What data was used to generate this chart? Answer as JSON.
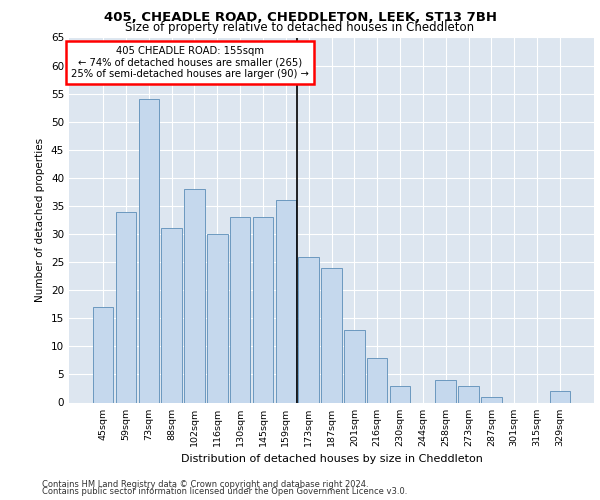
{
  "title1": "405, CHEADLE ROAD, CHEDDLETON, LEEK, ST13 7BH",
  "title2": "Size of property relative to detached houses in Cheddleton",
  "xlabel": "Distribution of detached houses by size in Cheddleton",
  "ylabel": "Number of detached properties",
  "categories": [
    "45sqm",
    "59sqm",
    "73sqm",
    "88sqm",
    "102sqm",
    "116sqm",
    "130sqm",
    "145sqm",
    "159sqm",
    "173sqm",
    "187sqm",
    "201sqm",
    "216sqm",
    "230sqm",
    "244sqm",
    "258sqm",
    "273sqm",
    "287sqm",
    "301sqm",
    "315sqm",
    "329sqm"
  ],
  "values": [
    17,
    34,
    54,
    31,
    38,
    30,
    33,
    33,
    36,
    26,
    24,
    13,
    8,
    3,
    0,
    4,
    3,
    1,
    0,
    0,
    2
  ],
  "bar_color": "#c5d8ed",
  "bar_edge_color": "#5b8db8",
  "vline_x": 8.5,
  "annotation_text": "405 CHEADLE ROAD: 155sqm\n← 74% of detached houses are smaller (265)\n25% of semi-detached houses are larger (90) →",
  "annotation_box_color": "white",
  "annotation_box_edge_color": "red",
  "ylim": [
    0,
    65
  ],
  "yticks": [
    0,
    5,
    10,
    15,
    20,
    25,
    30,
    35,
    40,
    45,
    50,
    55,
    60,
    65
  ],
  "background_color": "#dde6f0",
  "grid_color": "white",
  "footer1": "Contains HM Land Registry data © Crown copyright and database right 2024.",
  "footer2": "Contains public sector information licensed under the Open Government Licence v3.0."
}
